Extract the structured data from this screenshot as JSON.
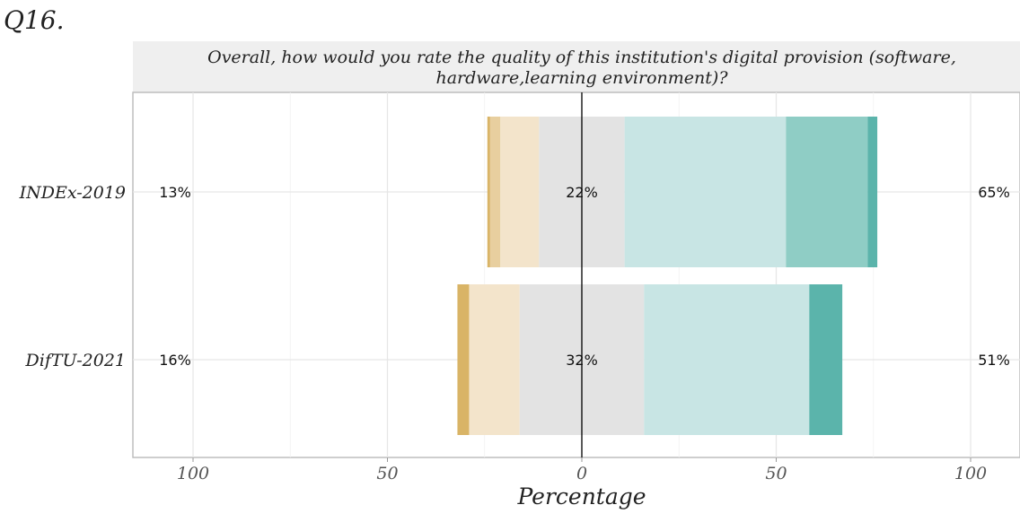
{
  "question_id": "Q16.",
  "chart_data": {
    "type": "bar",
    "subtype": "diverging-stacked-likert",
    "title_lines": [
      "Overall, how would you rate the quality of this institution's digital provision (software,",
      "hardware,learning environment)?"
    ],
    "xlabel": "Percentage",
    "ylabel": "",
    "xlim": [
      -100,
      100
    ],
    "xticks": [
      -100,
      -50,
      0,
      50,
      100
    ],
    "xtick_labels": [
      "100",
      "50",
      "0",
      "50",
      "100"
    ],
    "grid": true,
    "legend": "none",
    "categories": [
      "INDEx-2019",
      "DifTU-2021"
    ],
    "levels": [
      "level-1",
      "level-2",
      "level-3",
      "level-4",
      "level-5",
      "level-6",
      "level-7"
    ],
    "colors": [
      "#d9b466",
      "#e8cf9f",
      "#f3e4cb",
      "#e3e3e3",
      "#c8e5e4",
      "#8fcdc5",
      "#5bb4ab"
    ],
    "values": [
      [
        0.7,
        2.6,
        10.0,
        22.0,
        41.5,
        21.0,
        2.5
      ],
      [
        3.0,
        0.0,
        13.0,
        32.0,
        42.5,
        0.0,
        8.5
      ]
    ],
    "neutral_index": 3,
    "left_labels": [
      "13%",
      "16%"
    ],
    "center_labels": [
      "22%",
      "32%"
    ],
    "right_labels": [
      "65%",
      "51%"
    ]
  }
}
